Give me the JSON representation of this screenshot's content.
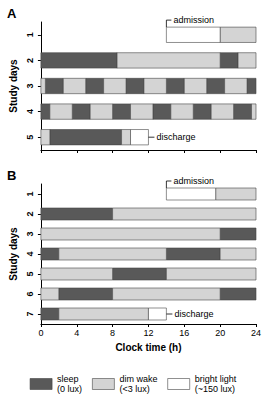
{
  "chart_data": [
    {
      "type": "timeline",
      "title": "A",
      "orientation": "horizontal",
      "tick_labels": "y",
      "ylabel": "Study days",
      "categories": [
        1,
        2,
        3,
        4,
        5
      ],
      "xlim": [
        0,
        24
      ],
      "xticks": [
        0,
        4,
        8,
        12,
        16,
        20,
        24
      ],
      "series": [
        {
          "name": "sleep\n(0 lux)",
          "color": "#595959",
          "values": [
            [
              2,
              0,
              8.5
            ],
            [
              2,
              20,
              22
            ],
            [
              3,
              0.5,
              2.5
            ],
            [
              3,
              5,
              7
            ],
            [
              3,
              9.5,
              11.5
            ],
            [
              3,
              14,
              16
            ],
            [
              3,
              18.5,
              20.5
            ],
            [
              3,
              23,
              24
            ],
            [
              4,
              0,
              1
            ],
            [
              4,
              3.5,
              5.5
            ],
            [
              4,
              8,
              10
            ],
            [
              4,
              12.5,
              14.5
            ],
            [
              4,
              17,
              19
            ],
            [
              4,
              21.5,
              23.5
            ],
            [
              5,
              1,
              9
            ]
          ]
        },
        {
          "name": "dim wake\n(<3 lux)",
          "color": "#d4d4d4",
          "values": [
            [
              1,
              20,
              24
            ],
            [
              2,
              8.5,
              20
            ],
            [
              2,
              22,
              24
            ],
            [
              3,
              0,
              0.5
            ],
            [
              3,
              2.5,
              5
            ],
            [
              3,
              7,
              9.5
            ],
            [
              3,
              11.5,
              14
            ],
            [
              3,
              16,
              18.5
            ],
            [
              3,
              20.5,
              23
            ],
            [
              4,
              1,
              3.5
            ],
            [
              4,
              5.5,
              8
            ],
            [
              4,
              10,
              12.5
            ],
            [
              4,
              14.5,
              17
            ],
            [
              4,
              19,
              21.5
            ],
            [
              4,
              23.5,
              24
            ],
            [
              5,
              0,
              1
            ],
            [
              5,
              9,
              10
            ]
          ]
        },
        {
          "name": "bright light\n(~150 lux)",
          "color": "#ffffff",
          "values": [
            [
              1,
              14,
              20
            ],
            [
              5,
              10,
              12
            ]
          ]
        }
      ],
      "annotations": [
        {
          "text": "admission",
          "day": 1,
          "x": 14,
          "side": "above"
        },
        {
          "text": "discharge",
          "day": 5,
          "x": 12,
          "side": "right"
        }
      ]
    },
    {
      "type": "timeline",
      "title": "B",
      "orientation": "horizontal",
      "legend": "bottom",
      "xlabel": "Clock time (h)",
      "ylabel": "Study days",
      "categories": [
        1,
        2,
        3,
        4,
        5,
        6,
        7
      ],
      "xlim": [
        0,
        24
      ],
      "xticks": [
        0,
        4,
        8,
        12,
        16,
        20,
        24
      ],
      "series": [
        {
          "name": "sleep\n(0 lux)",
          "color": "#595959",
          "values": [
            [
              2,
              0,
              8
            ],
            [
              3,
              20,
              24
            ],
            [
              4,
              0,
              2
            ],
            [
              4,
              14,
              20
            ],
            [
              5,
              8,
              14
            ],
            [
              6,
              2,
              8
            ],
            [
              6,
              20,
              24
            ],
            [
              7,
              0,
              2
            ]
          ]
        },
        {
          "name": "dim wake\n(<3 lux)",
          "color": "#d4d4d4",
          "values": [
            [
              1,
              19.5,
              24
            ],
            [
              2,
              8,
              24
            ],
            [
              3,
              0,
              20
            ],
            [
              4,
              2,
              14
            ],
            [
              4,
              20,
              24
            ],
            [
              5,
              0,
              8
            ],
            [
              5,
              14,
              24
            ],
            [
              6,
              0,
              2
            ],
            [
              6,
              8,
              20
            ],
            [
              7,
              2,
              12
            ]
          ]
        },
        {
          "name": "bright light\n(~150 lux)",
          "color": "#ffffff",
          "values": [
            [
              1,
              14,
              19.5
            ],
            [
              7,
              12,
              14
            ]
          ]
        }
      ],
      "annotations": [
        {
          "text": "admission",
          "day": 1,
          "x": 14,
          "side": "above"
        },
        {
          "text": "discharge",
          "day": 7,
          "x": 14,
          "side": "right"
        }
      ]
    }
  ]
}
